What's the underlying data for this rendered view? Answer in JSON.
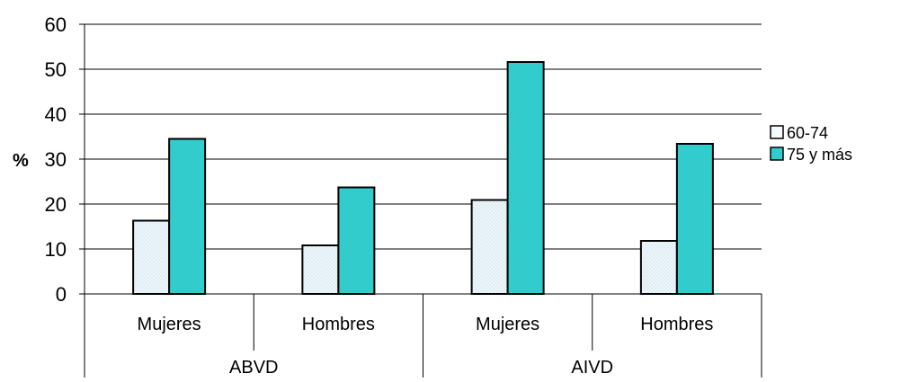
{
  "chart_data": {
    "type": "bar",
    "ylabel": "%",
    "ylim": [
      0,
      60
    ],
    "yticks": [
      0,
      10,
      20,
      30,
      40,
      50,
      60
    ],
    "groups": [
      {
        "label": "ABVD",
        "categories": [
          "Mujeres",
          "Hombres"
        ]
      },
      {
        "label": "AIVD",
        "categories": [
          "Mujeres",
          "Hombres"
        ]
      }
    ],
    "categories": [
      "Mujeres",
      "Hombres",
      "Mujeres",
      "Hombres"
    ],
    "series": [
      {
        "name": "60-74",
        "values": [
          16.3,
          10.8,
          20.9,
          11.8
        ],
        "color": "#eef6fa"
      },
      {
        "name": "75 y más",
        "values": [
          34.5,
          23.7,
          51.6,
          33.4
        ],
        "color": "#33cccc"
      }
    ],
    "grid": true,
    "legend_position": "right"
  }
}
